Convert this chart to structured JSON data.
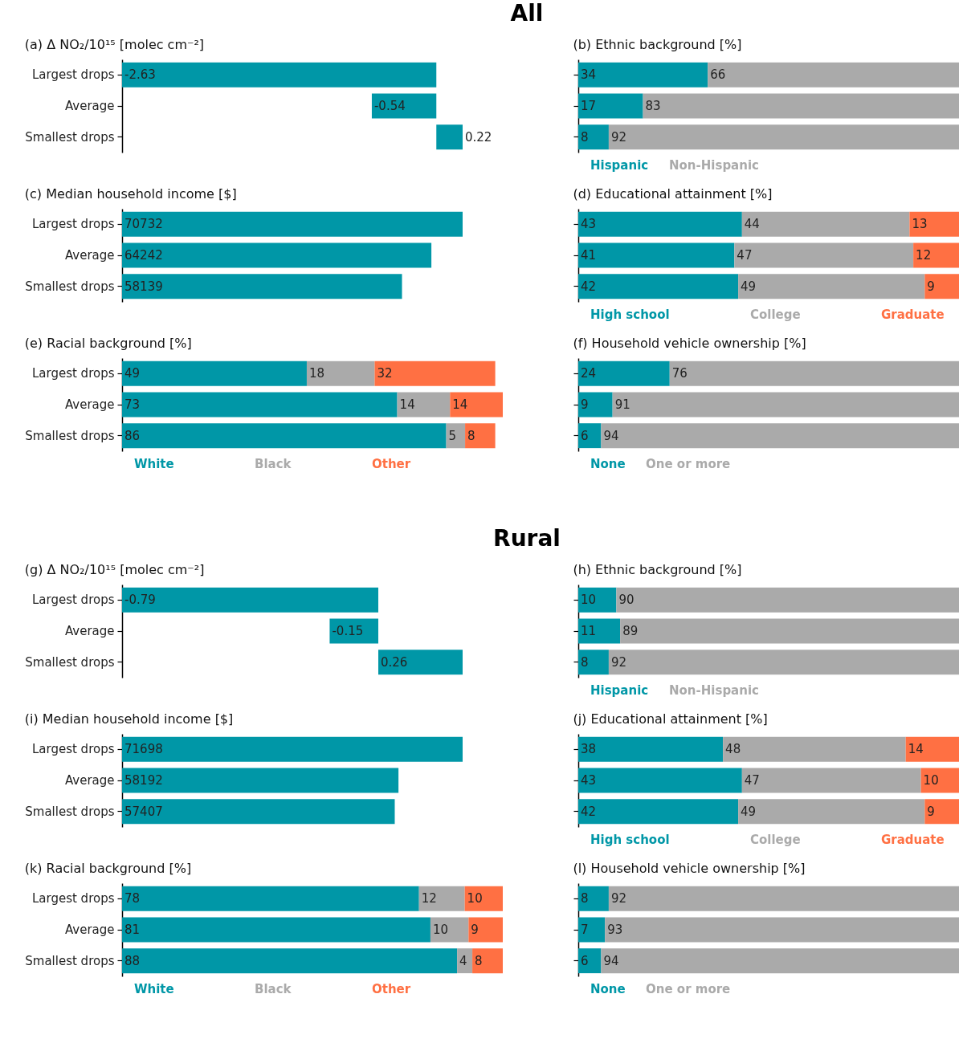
{
  "chart_data": [
    {
      "type": "other",
      "title": "All"
    },
    {
      "type": "bar",
      "orientation": "horizontal",
      "title": "(a) Δ NO₂/10¹⁵ [molec cm⁻²]",
      "categories": [
        "Largest drops",
        "Average",
        "Smallest drops"
      ],
      "values": [
        -2.63,
        -0.54,
        0.22
      ],
      "color": "#0097a7",
      "data_labels": true,
      "tick_labels": "y"
    },
    {
      "type": "bar",
      "orientation": "horizontal",
      "stacked": true,
      "title": "(b) Ethnic background [%]",
      "categories": [
        null,
        null,
        null
      ],
      "xlim": [
        0,
        100
      ],
      "legend": "bottom",
      "data_labels": true,
      "tick_labels": false,
      "series": [
        {
          "name": "Hispanic",
          "color": "#0097a7",
          "values": [
            34,
            17,
            8
          ]
        },
        {
          "name": "Non-Hispanic",
          "color": "#aaaaaa",
          "values": [
            66,
            83,
            92
          ]
        }
      ]
    },
    {
      "type": "bar",
      "orientation": "horizontal",
      "title": "(c) Median household income [$]",
      "categories": [
        "Largest drops",
        "Average",
        "Smallest drops"
      ],
      "values": [
        70732,
        64242,
        58139
      ],
      "color": "#0097a7",
      "data_labels": true,
      "tick_labels": "y"
    },
    {
      "type": "bar",
      "orientation": "horizontal",
      "stacked": true,
      "title": "(d) Educational attainment [%]",
      "categories": [
        null,
        null,
        null
      ],
      "xlim": [
        0,
        100
      ],
      "legend": "bottom",
      "data_labels": true,
      "tick_labels": false,
      "series": [
        {
          "name": "High school",
          "color": "#0097a7",
          "values": [
            43,
            41,
            42
          ]
        },
        {
          "name": "College",
          "color": "#aaaaaa",
          "values": [
            44,
            47,
            49
          ]
        },
        {
          "name": "Graduate",
          "color": "#ff7043",
          "values": [
            13,
            12,
            9
          ]
        }
      ]
    },
    {
      "type": "bar",
      "orientation": "horizontal",
      "stacked": true,
      "title": "(e) Racial background [%]",
      "categories": [
        "Largest drops",
        "Average",
        "Smallest drops"
      ],
      "xlim": [
        0,
        101
      ],
      "legend": "bottom",
      "data_labels": true,
      "tick_labels": "y",
      "series": [
        {
          "name": "White",
          "color": "#0097a7",
          "values": [
            49,
            73,
            86
          ]
        },
        {
          "name": "Black",
          "color": "#aaaaaa",
          "values": [
            18,
            14,
            5
          ]
        },
        {
          "name": "Other",
          "color": "#ff7043",
          "values": [
            32,
            14,
            8
          ]
        }
      ]
    },
    {
      "type": "bar",
      "orientation": "horizontal",
      "stacked": true,
      "title": "(f) Household vehicle ownership [%]",
      "categories": [
        null,
        null,
        null
      ],
      "xlim": [
        0,
        100
      ],
      "legend": "bottom",
      "data_labels": true,
      "tick_labels": false,
      "series": [
        {
          "name": "None",
          "color": "#0097a7",
          "values": [
            24,
            9,
            6
          ]
        },
        {
          "name": "One or more",
          "color": "#aaaaaa",
          "values": [
            76,
            91,
            94
          ]
        }
      ]
    },
    {
      "type": "other",
      "title": "Rural"
    },
    {
      "type": "bar",
      "orientation": "horizontal",
      "title": "(g) Δ NO₂/10¹⁵ [molec cm⁻²]",
      "categories": [
        "Largest drops",
        "Average",
        "Smallest drops"
      ],
      "values": [
        -0.79,
        -0.15,
        0.26
      ],
      "color": "#0097a7",
      "data_labels": true,
      "tick_labels": "y"
    },
    {
      "type": "bar",
      "orientation": "horizontal",
      "stacked": true,
      "title": "(h) Ethnic background [%]",
      "categories": [
        null,
        null,
        null
      ],
      "xlim": [
        0,
        100
      ],
      "legend": "bottom",
      "data_labels": true,
      "tick_labels": false,
      "series": [
        {
          "name": "Hispanic",
          "color": "#0097a7",
          "values": [
            10,
            11,
            8
          ]
        },
        {
          "name": "Non-Hispanic",
          "color": "#aaaaaa",
          "values": [
            90,
            89,
            92
          ]
        }
      ]
    },
    {
      "type": "bar",
      "orientation": "horizontal",
      "title": "(i) Median household income [$]",
      "categories": [
        "Largest drops",
        "Average",
        "Smallest drops"
      ],
      "values": [
        71698,
        58192,
        57407
      ],
      "color": "#0097a7",
      "data_labels": true,
      "tick_labels": "y"
    },
    {
      "type": "bar",
      "orientation": "horizontal",
      "stacked": true,
      "title": "(j) Educational attainment [%]",
      "categories": [
        null,
        null,
        null
      ],
      "xlim": [
        0,
        100
      ],
      "legend": "bottom",
      "data_labels": true,
      "tick_labels": false,
      "series": [
        {
          "name": "High school",
          "color": "#0097a7",
          "values": [
            38,
            43,
            42
          ]
        },
        {
          "name": "College",
          "color": "#aaaaaa",
          "values": [
            48,
            47,
            49
          ]
        },
        {
          "name": "Graduate",
          "color": "#ff7043",
          "values": [
            14,
            10,
            9
          ]
        }
      ]
    },
    {
      "type": "bar",
      "orientation": "horizontal",
      "stacked": true,
      "title": "(k) Racial background [%]",
      "categories": [
        "Largest drops",
        "Average",
        "Smallest drops"
      ],
      "xlim": [
        0,
        100
      ],
      "legend": "bottom",
      "data_labels": true,
      "tick_labels": "y",
      "series": [
        {
          "name": "White",
          "color": "#0097a7",
          "values": [
            78,
            81,
            88
          ]
        },
        {
          "name": "Black",
          "color": "#aaaaaa",
          "values": [
            12,
            10,
            4
          ]
        },
        {
          "name": "Other",
          "color": "#ff7043",
          "values": [
            10,
            9,
            8
          ]
        }
      ]
    },
    {
      "type": "bar",
      "orientation": "horizontal",
      "stacked": true,
      "title": "(l) Household vehicle ownership [%]",
      "categories": [
        null,
        null,
        null
      ],
      "xlim": [
        0,
        100
      ],
      "legend": "bottom",
      "data_labels": true,
      "tick_labels": false,
      "series": [
        {
          "name": "None",
          "color": "#0097a7",
          "values": [
            8,
            7,
            6
          ]
        },
        {
          "name": "One or more",
          "color": "#aaaaaa",
          "values": [
            92,
            93,
            94
          ]
        }
      ]
    }
  ]
}
